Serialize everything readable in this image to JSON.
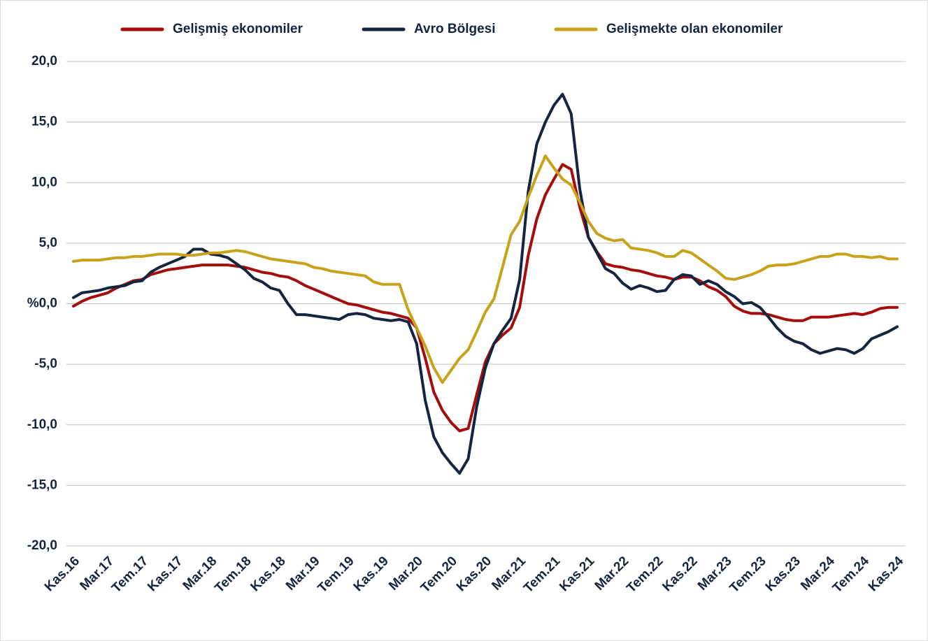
{
  "chart_data": {
    "type": "line",
    "categories": [
      "Kas.16",
      null,
      null,
      null,
      "Mar.17",
      null,
      null,
      null,
      "Tem.17",
      null,
      null,
      null,
      "Kas.17",
      null,
      null,
      null,
      "Mar.18",
      null,
      null,
      null,
      "Tem.18",
      null,
      null,
      null,
      "Kas.18",
      null,
      null,
      null,
      "Mar.19",
      null,
      null,
      null,
      "Tem.19",
      null,
      null,
      null,
      "Kas.19",
      null,
      null,
      null,
      "Mar.20",
      null,
      null,
      null,
      "Tem.20",
      null,
      null,
      null,
      "Kas.20",
      null,
      null,
      null,
      "Mar.21",
      null,
      null,
      null,
      "Tem.21",
      null,
      null,
      null,
      "Kas.21",
      null,
      null,
      null,
      "Mar.22",
      null,
      null,
      null,
      "Tem.22",
      null,
      null,
      null,
      "Kas.22",
      null,
      null,
      null,
      "Mar.23",
      null,
      null,
      null,
      "Tem.23",
      null,
      null,
      null,
      "Kas.23",
      null,
      null,
      null,
      "Mar.24",
      null,
      null,
      null,
      "Tem.24",
      null,
      null,
      null,
      "Kas.24"
    ],
    "series": [
      {
        "name": "Gelişmiş ekonomiler",
        "color": "#a50d0d",
        "values": [
          -0.2,
          0.2,
          0.5,
          0.7,
          0.9,
          1.3,
          1.6,
          1.9,
          2.0,
          2.4,
          2.6,
          2.8,
          2.9,
          3.0,
          3.1,
          3.2,
          3.2,
          3.2,
          3.2,
          3.1,
          3.0,
          2.8,
          2.6,
          2.5,
          2.3,
          2.2,
          1.9,
          1.5,
          1.2,
          0.9,
          0.6,
          0.3,
          0.0,
          -0.1,
          -0.3,
          -0.5,
          -0.7,
          -0.8,
          -1.0,
          -1.2,
          -2.0,
          -4.5,
          -7.3,
          -8.8,
          -9.8,
          -10.5,
          -10.3,
          -7.5,
          -4.8,
          -3.3,
          -2.6,
          -2.0,
          -0.3,
          4.0,
          7.0,
          9.0,
          10.3,
          11.5,
          11.1,
          8.0,
          5.5,
          4.3,
          3.3,
          3.1,
          3.0,
          2.8,
          2.7,
          2.5,
          2.3,
          2.2,
          2.0,
          2.2,
          2.2,
          1.9,
          1.4,
          1.1,
          0.6,
          -0.2,
          -0.6,
          -0.8,
          -0.8,
          -0.9,
          -1.1,
          -1.3,
          -1.4,
          -1.4,
          -1.1,
          -1.1,
          -1.1,
          -1.0,
          -0.9,
          -0.8,
          -0.9,
          -0.7,
          -0.4,
          -0.3,
          -0.3
        ]
      },
      {
        "name": "Avro Bölgesi",
        "color": "#13253f",
        "values": [
          0.5,
          0.9,
          1.0,
          1.1,
          1.3,
          1.4,
          1.5,
          1.8,
          1.9,
          2.6,
          3.0,
          3.3,
          3.6,
          3.9,
          4.5,
          4.5,
          4.1,
          4.0,
          3.8,
          3.3,
          2.8,
          2.1,
          1.8,
          1.3,
          1.1,
          0.0,
          -0.9,
          -0.9,
          -1.0,
          -1.1,
          -1.2,
          -1.3,
          -0.9,
          -0.8,
          -0.9,
          -1.2,
          -1.3,
          -1.4,
          -1.3,
          -1.5,
          -3.3,
          -8.0,
          -11.0,
          -12.3,
          -13.2,
          -14.0,
          -12.8,
          -8.5,
          -5.3,
          -3.3,
          -2.2,
          -1.2,
          2.0,
          9.3,
          13.2,
          15.0,
          16.4,
          17.3,
          15.7,
          9.5,
          5.5,
          4.2,
          2.9,
          2.5,
          1.7,
          1.2,
          1.5,
          1.3,
          1.0,
          1.1,
          2.0,
          2.4,
          2.3,
          1.6,
          1.9,
          1.6,
          1.0,
          0.6,
          0.0,
          0.1,
          -0.3,
          -1.1,
          -2.0,
          -2.7,
          -3.1,
          -3.3,
          -3.8,
          -4.1,
          -3.9,
          -3.7,
          -3.8,
          -4.1,
          -3.7,
          -2.9,
          -2.6,
          -2.3,
          -1.9
        ]
      },
      {
        "name": "Gelişmekte olan ekonomiler",
        "color": "#c9a21b",
        "values": [
          3.5,
          3.6,
          3.6,
          3.6,
          3.7,
          3.8,
          3.8,
          3.9,
          3.9,
          4.0,
          4.1,
          4.1,
          4.1,
          4.0,
          4.0,
          4.1,
          4.2,
          4.2,
          4.3,
          4.4,
          4.3,
          4.1,
          3.9,
          3.7,
          3.6,
          3.5,
          3.4,
          3.3,
          3.0,
          2.9,
          2.7,
          2.6,
          2.5,
          2.4,
          2.3,
          1.8,
          1.6,
          1.6,
          1.6,
          -0.5,
          -2.0,
          -3.5,
          -5.3,
          -6.5,
          -5.5,
          -4.5,
          -3.8,
          -2.3,
          -0.7,
          0.4,
          3.0,
          5.7,
          6.8,
          8.8,
          10.6,
          12.2,
          11.2,
          10.3,
          9.8,
          8.4,
          6.8,
          5.8,
          5.4,
          5.2,
          5.3,
          4.6,
          4.5,
          4.4,
          4.2,
          3.9,
          3.9,
          4.4,
          4.2,
          3.7,
          3.2,
          2.7,
          2.1,
          2.0,
          2.2,
          2.4,
          2.7,
          3.1,
          3.2,
          3.2,
          3.3,
          3.5,
          3.7,
          3.9,
          3.9,
          4.1,
          4.1,
          3.9,
          3.9,
          3.8,
          3.9,
          3.7,
          3.7
        ]
      }
    ],
    "ylim": [
      -20,
      20
    ],
    "yticks": [
      {
        "value": 20,
        "label": "20,0"
      },
      {
        "value": 15,
        "label": "15,0"
      },
      {
        "value": 10,
        "label": "10,0"
      },
      {
        "value": 5,
        "label": "5,0"
      },
      {
        "value": 0,
        "label": "%0,0"
      },
      {
        "value": -5,
        "label": "-5,0"
      },
      {
        "value": -10,
        "label": "-10,0"
      },
      {
        "value": -15,
        "label": "-15,0"
      },
      {
        "value": -20,
        "label": "-20,0"
      }
    ],
    "grid": true,
    "legend": "top"
  }
}
